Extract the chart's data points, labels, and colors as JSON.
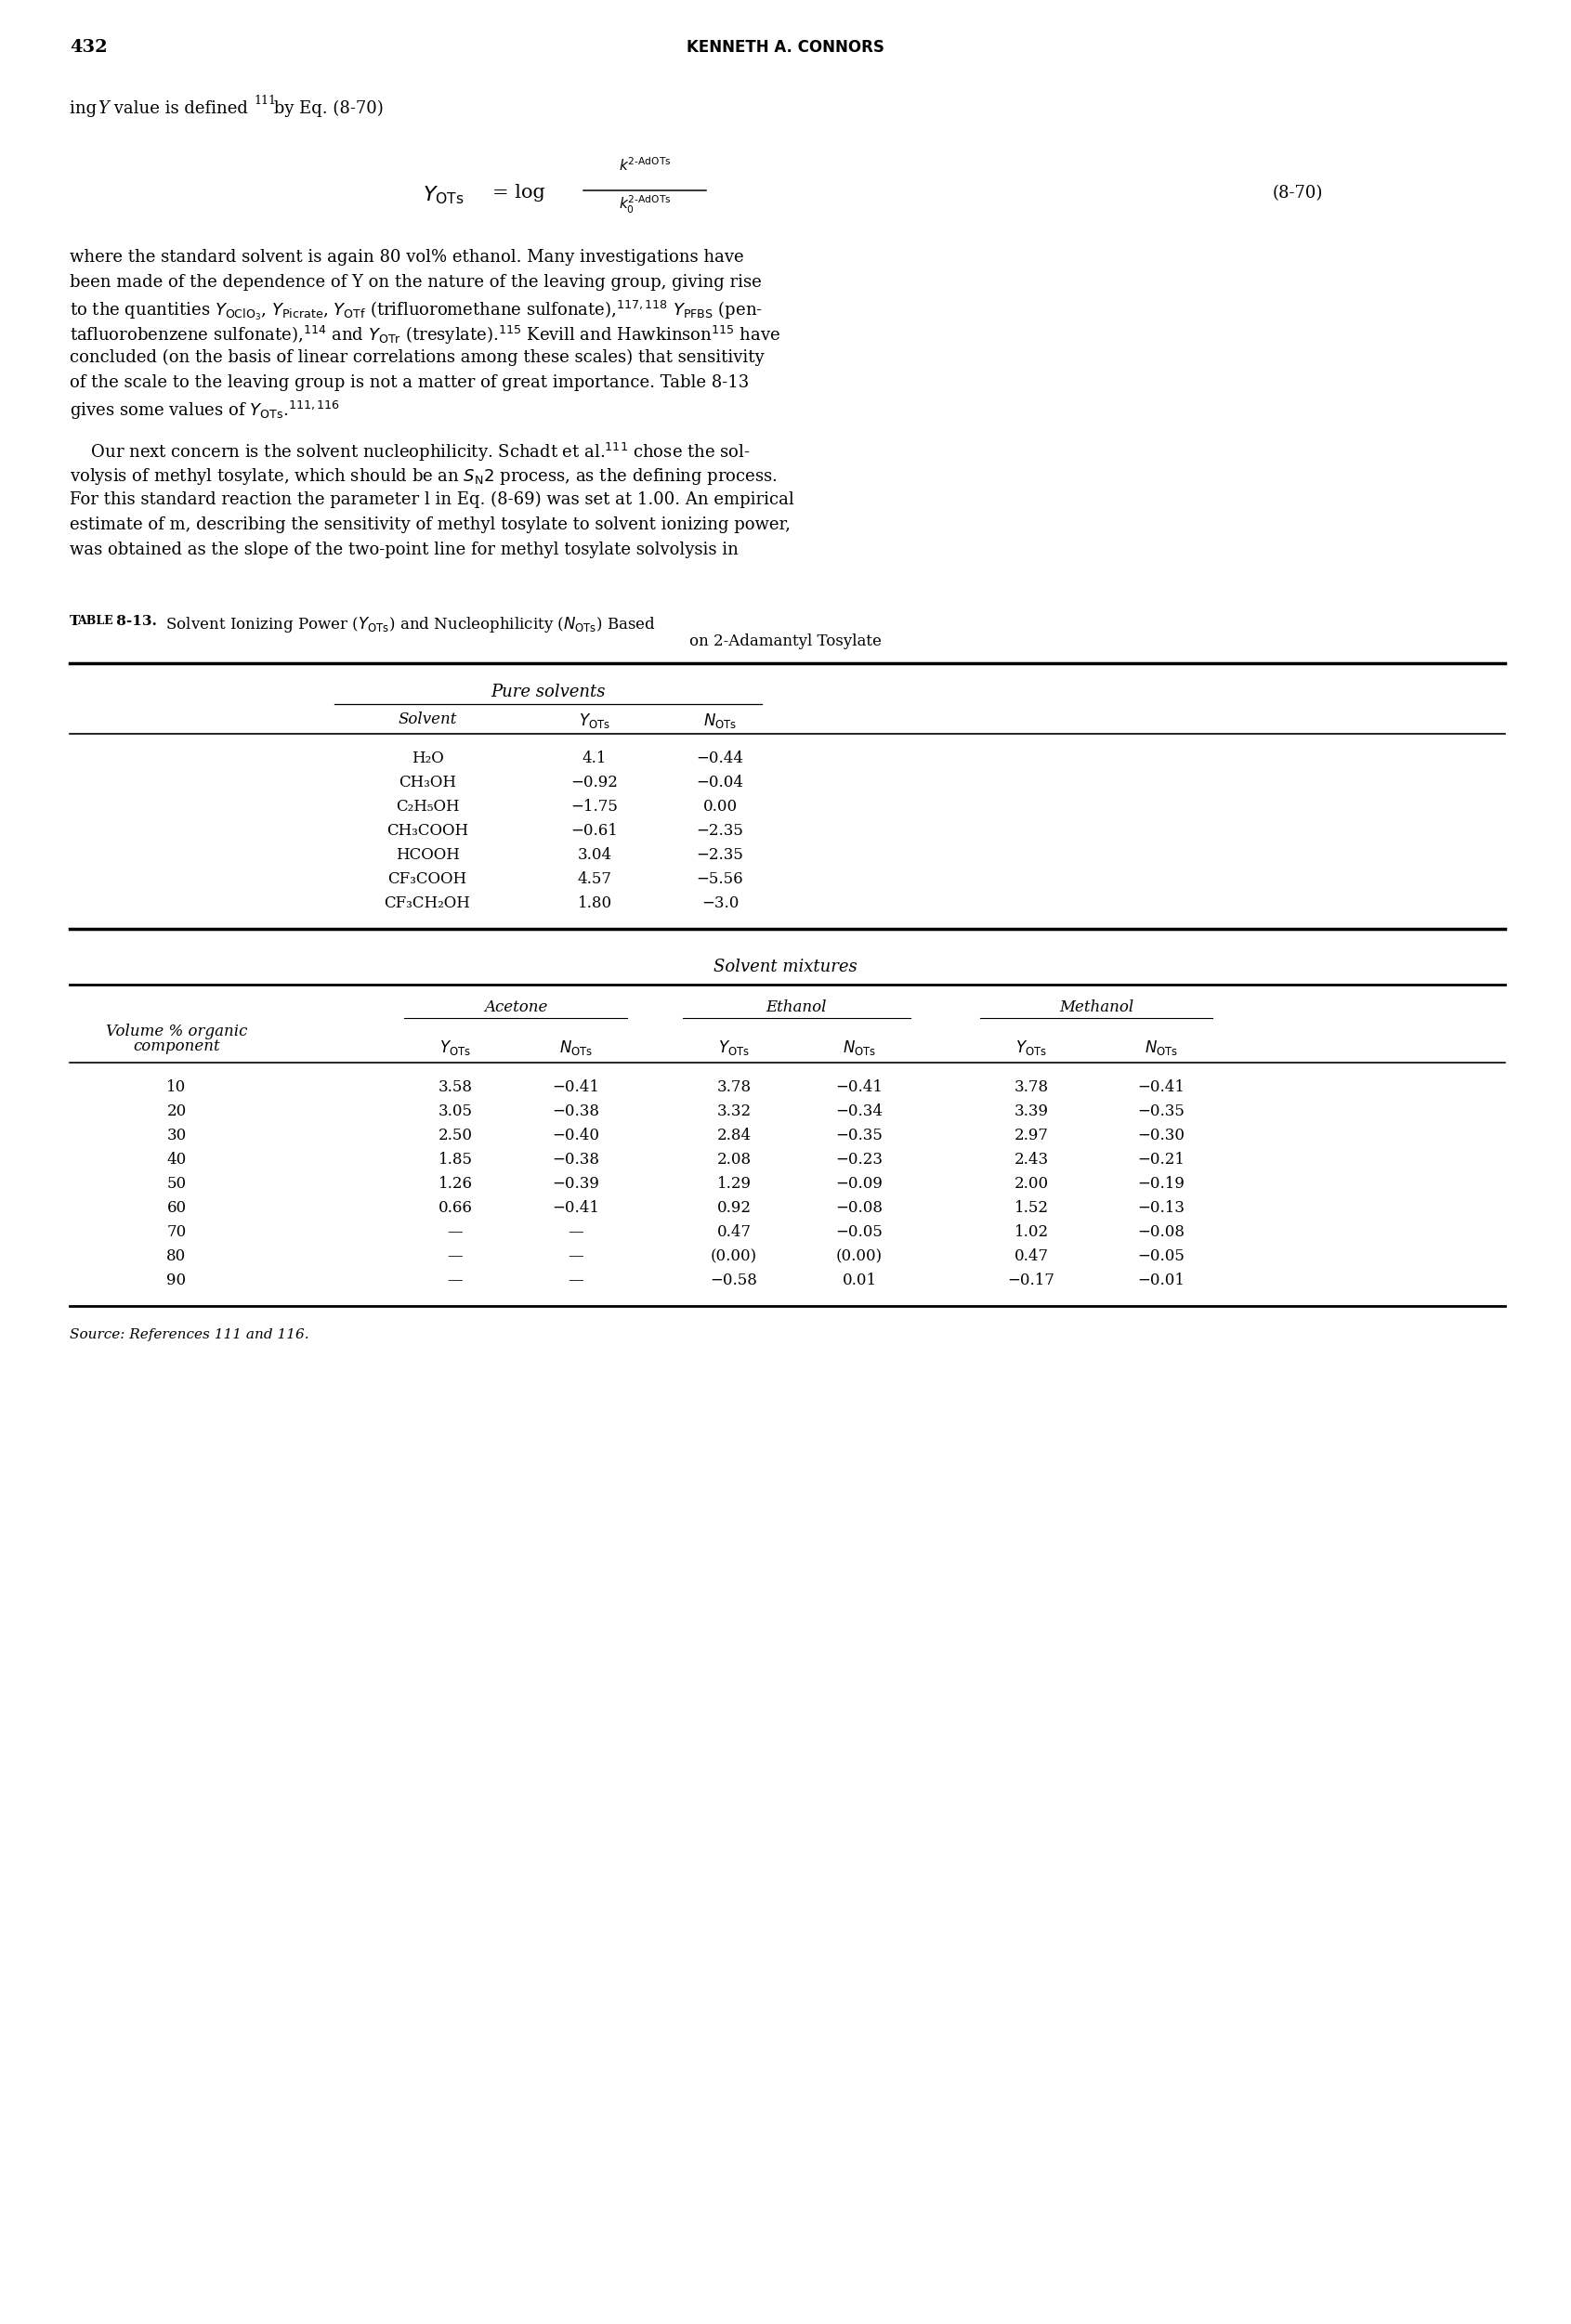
{
  "page_num": "432",
  "page_header": "KENNETH A. CONNORS",
  "pure_solvents": [
    [
      "H₂O",
      "4.1",
      "−0.44"
    ],
    [
      "CH₃OH",
      "−0.92",
      "−0.04"
    ],
    [
      "C₂H₅OH",
      "−1.75",
      "0.00"
    ],
    [
      "CH₃COOH",
      "−0.61",
      "−2.35"
    ],
    [
      "HCOOH",
      "3.04",
      "−2.35"
    ],
    [
      "CF₃COOH",
      "4.57",
      "−5.56"
    ],
    [
      "CF₃CH₂OH",
      "1.80",
      "−3.0"
    ]
  ],
  "mixtures_data": [
    [
      "10",
      "3.58",
      "−0.41",
      "3.78",
      "−0.41",
      "3.78",
      "−0.41"
    ],
    [
      "20",
      "3.05",
      "−0.38",
      "3.32",
      "−0.34",
      "3.39",
      "−0.35"
    ],
    [
      "30",
      "2.50",
      "−0.40",
      "2.84",
      "−0.35",
      "2.97",
      "−0.30"
    ],
    [
      "40",
      "1.85",
      "−0.38",
      "2.08",
      "−0.23",
      "2.43",
      "−0.21"
    ],
    [
      "50",
      "1.26",
      "−0.39",
      "1.29",
      "−0.09",
      "2.00",
      "−0.19"
    ],
    [
      "60",
      "0.66",
      "−0.41",
      "0.92",
      "−0.08",
      "1.52",
      "−0.13"
    ],
    [
      "70",
      "—",
      "—",
      "0.47",
      "−0.05",
      "1.02",
      "−0.08"
    ],
    [
      "80",
      "—",
      "—",
      "(0.00)",
      "(0.00)",
      "0.47",
      "−0.05"
    ],
    [
      "90",
      "—",
      "—",
      "−0.58",
      "0.01",
      "−0.17",
      "−0.01"
    ]
  ],
  "source_note": "Source: References 111 and 116.",
  "bg_color": "#ffffff",
  "text_color": "#000000"
}
